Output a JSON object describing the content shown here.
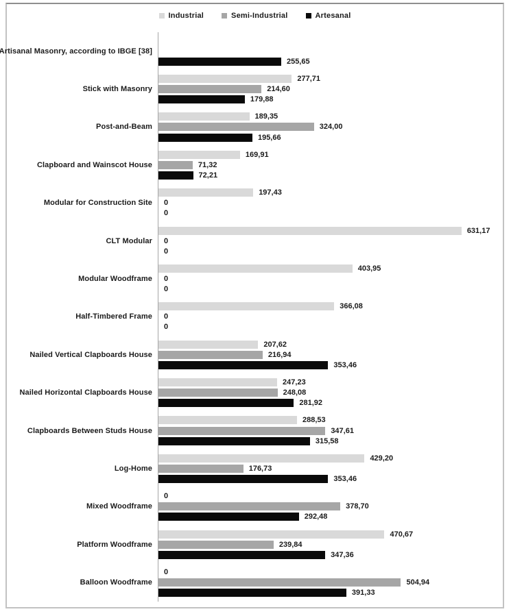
{
  "legend": {
    "position": "top",
    "items": [
      {
        "label": "Industrial",
        "color": "#d9d9d9"
      },
      {
        "label": "Semi-Industrial",
        "color": "#a6a6a6"
      },
      {
        "label": "Artesanal",
        "color": "#0a0a0a"
      }
    ]
  },
  "chart_data": {
    "type": "bar",
    "orientation": "horizontal",
    "title": "",
    "xlabel": "",
    "ylabel": "",
    "xlim": [
      0,
      650
    ],
    "grid": false,
    "axis_line_color": "#a6a6a6",
    "frame_color": "#c2c2c2",
    "value_label_decimal_separator": ",",
    "categories": [
      "Artisanal Masonry, according to IBGE [38]",
      "Stick with Masonry",
      "Post-and-Beam",
      "Clapboard and Wainscot House",
      "Modular for Construction Site",
      "CLT Modular",
      "Modular Woodframe",
      "Half-Timbered Frame",
      "Nailed Vertical Clapboards House",
      "Nailed Horizontal Clapboards House",
      "Clapboards Between Studs House",
      "Log-Home",
      "Mixed Woodframe",
      "Platform Woodframe",
      "Balloon Woodframe"
    ],
    "series": [
      {
        "name": "Industrial",
        "color": "#d9d9d9",
        "values": [
          null,
          277.71,
          189.35,
          169.91,
          197.43,
          631.17,
          403.95,
          366.08,
          207.62,
          247.23,
          288.53,
          429.2,
          0,
          470.67,
          0
        ],
        "labels": [
          "",
          "277,71",
          "189,35",
          "169,91",
          "197,43",
          "631,17",
          "403,95",
          "366,08",
          "207,62",
          "247,23",
          "288,53",
          "429,20",
          "0",
          "470,67",
          "0"
        ]
      },
      {
        "name": "Semi-Industrial",
        "color": "#a6a6a6",
        "values": [
          null,
          214.6,
          324.0,
          71.32,
          0,
          0,
          0,
          0,
          216.94,
          248.08,
          347.61,
          176.73,
          378.7,
          239.84,
          504.94
        ],
        "labels": [
          "",
          "214,60",
          "324,00",
          "71,32",
          "0",
          "0",
          "0",
          "0",
          "216,94",
          "248,08",
          "347,61",
          "176,73",
          "378,70",
          "239,84",
          "504,94"
        ]
      },
      {
        "name": "Artesanal",
        "color": "#0a0a0a",
        "values": [
          255.65,
          179.88,
          195.66,
          72.21,
          0,
          0,
          0,
          0,
          353.46,
          281.92,
          315.58,
          353.46,
          292.48,
          347.36,
          391.33
        ],
        "labels": [
          "255,65",
          "179,88",
          "195,66",
          "72,21",
          "0",
          "0",
          "0",
          "0",
          "353,46",
          "281,92",
          "315,58",
          "353,46",
          "292,48",
          "347,36",
          "391,33"
        ]
      }
    ]
  }
}
